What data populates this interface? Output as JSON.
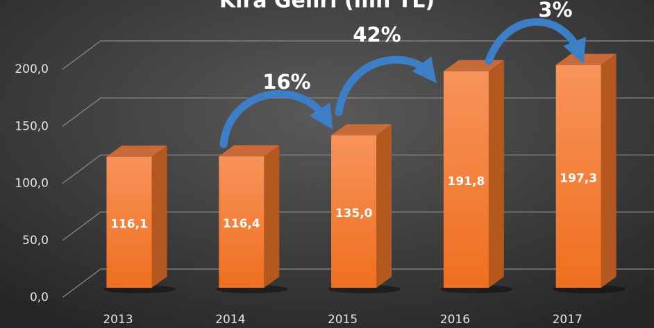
{
  "chart_data": {
    "type": "bar3d",
    "title": "Kira Geliri (mn TL)",
    "categories": [
      "2013",
      "2014",
      "2015",
      "2016",
      "2017"
    ],
    "values": [
      116.1,
      116.4,
      135.0,
      191.8,
      197.3
    ],
    "value_labels": [
      "116,1",
      "116,4",
      "135,0",
      "191,8",
      "197,3"
    ],
    "color": "#f47a2e",
    "ylim": [
      0,
      200
    ],
    "yticks": [
      {
        "value": 0,
        "label": "0,0"
      },
      {
        "value": 50,
        "label": "50,0"
      },
      {
        "value": 100,
        "label": "100,0"
      },
      {
        "value": 150,
        "label": "150,0"
      },
      {
        "value": 200,
        "label": "200,0"
      }
    ],
    "grid": true,
    "annotations": [
      "16%",
      "42%",
      "3%"
    ]
  }
}
